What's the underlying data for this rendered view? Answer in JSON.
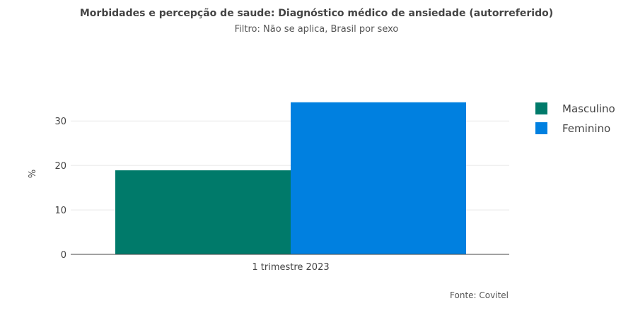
{
  "title": "Morbidades e percepção de saude: Diagnóstico médico de ansiedade (autorreferido)",
  "subtitle": "Filtro: Não se aplica, Brasil por sexo",
  "source": "Fonte: Covitel",
  "colors": {
    "masculino": "#007a6a",
    "feminino": "#0080e0",
    "gridline": "#e8e8e8",
    "axis": "#444444"
  },
  "chart_data": {
    "type": "bar",
    "categories": [
      "1 trimestre 2023"
    ],
    "series": [
      {
        "name": "Masculino",
        "values": [
          18.9
        ]
      },
      {
        "name": "Feminino",
        "values": [
          34.2
        ]
      }
    ],
    "title": "Morbidades e percepção de saude: Diagnóstico médico de ansiedade (autorreferido)",
    "subtitle": "Filtro: Não se aplica, Brasil por sexo",
    "xlabel": "",
    "ylabel": "%",
    "ylim": [
      0,
      37.5
    ],
    "yticks": [
      0,
      10,
      20,
      30
    ],
    "ytick_labels": [
      "0",
      "10",
      "20",
      "30"
    ],
    "grid": true,
    "legend_position": "right"
  }
}
